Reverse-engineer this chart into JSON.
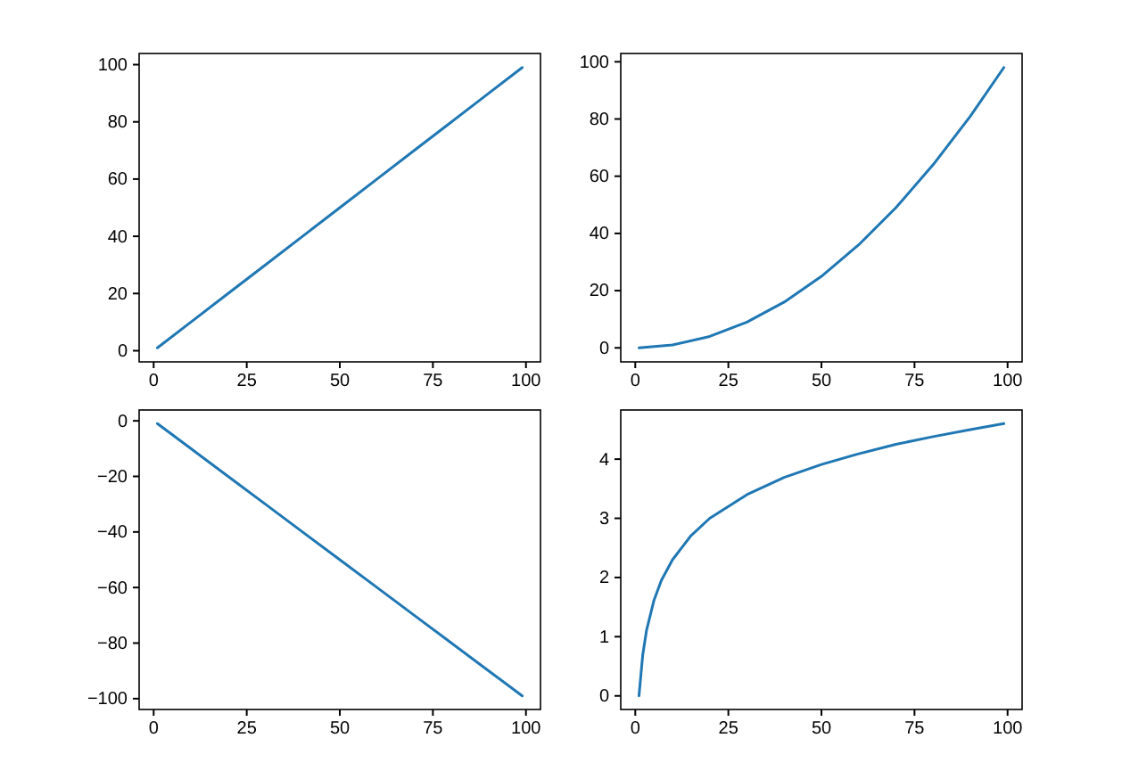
{
  "chart_data": [
    {
      "type": "line",
      "x": [
        1,
        10,
        20,
        30,
        40,
        50,
        60,
        70,
        80,
        90,
        99
      ],
      "values": [
        1,
        10,
        20,
        30,
        40,
        50,
        60,
        70,
        80,
        90,
        99
      ],
      "color": "#1f77b4",
      "xlim": [
        -3.9,
        103.9
      ],
      "ylim": [
        -3.9,
        103.9
      ],
      "xticks": [
        0,
        25,
        50,
        75,
        100
      ],
      "yticks": [
        0,
        20,
        40,
        60,
        80,
        100
      ]
    },
    {
      "type": "line",
      "x": [
        1,
        10,
        20,
        30,
        40,
        50,
        60,
        70,
        80,
        90,
        99
      ],
      "values": [
        0,
        1,
        4,
        9,
        16,
        25,
        36,
        49,
        64,
        81,
        98
      ],
      "color": "#1f77b4",
      "xlim": [
        -3.9,
        103.9
      ],
      "ylim": [
        -4.9,
        102.9
      ],
      "xticks": [
        0,
        25,
        50,
        75,
        100
      ],
      "yticks": [
        0,
        20,
        40,
        60,
        80,
        100
      ]
    },
    {
      "type": "line",
      "x": [
        1,
        10,
        20,
        30,
        40,
        50,
        60,
        70,
        80,
        90,
        99
      ],
      "values": [
        -1,
        -10,
        -20,
        -30,
        -40,
        -50,
        -60,
        -70,
        -80,
        -90,
        -99
      ],
      "color": "#1f77b4",
      "xlim": [
        -3.9,
        103.9
      ],
      "ylim": [
        -103.9,
        3.9
      ],
      "xticks": [
        0,
        25,
        50,
        75,
        100
      ],
      "yticks": [
        {
          "value": -100,
          "label": "−100"
        },
        {
          "value": -80,
          "label": "−80"
        },
        {
          "value": -60,
          "label": "−60"
        },
        {
          "value": -40,
          "label": "−40"
        },
        {
          "value": -20,
          "label": "−20"
        },
        0
      ]
    },
    {
      "type": "line",
      "x": [
        1,
        2,
        3,
        5,
        7,
        10,
        15,
        20,
        30,
        40,
        50,
        60,
        70,
        80,
        90,
        99
      ],
      "values": [
        0,
        0.69,
        1.1,
        1.61,
        1.95,
        2.3,
        2.71,
        3,
        3.4,
        3.69,
        3.91,
        4.09,
        4.25,
        4.38,
        4.5,
        4.6
      ],
      "color": "#1f77b4",
      "xlim": [
        -3.9,
        103.9
      ],
      "ylim": [
        -0.23,
        4.83
      ],
      "xticks": [
        0,
        25,
        50,
        75,
        100
      ],
      "yticks": [
        0,
        1,
        2,
        3,
        4
      ]
    }
  ]
}
